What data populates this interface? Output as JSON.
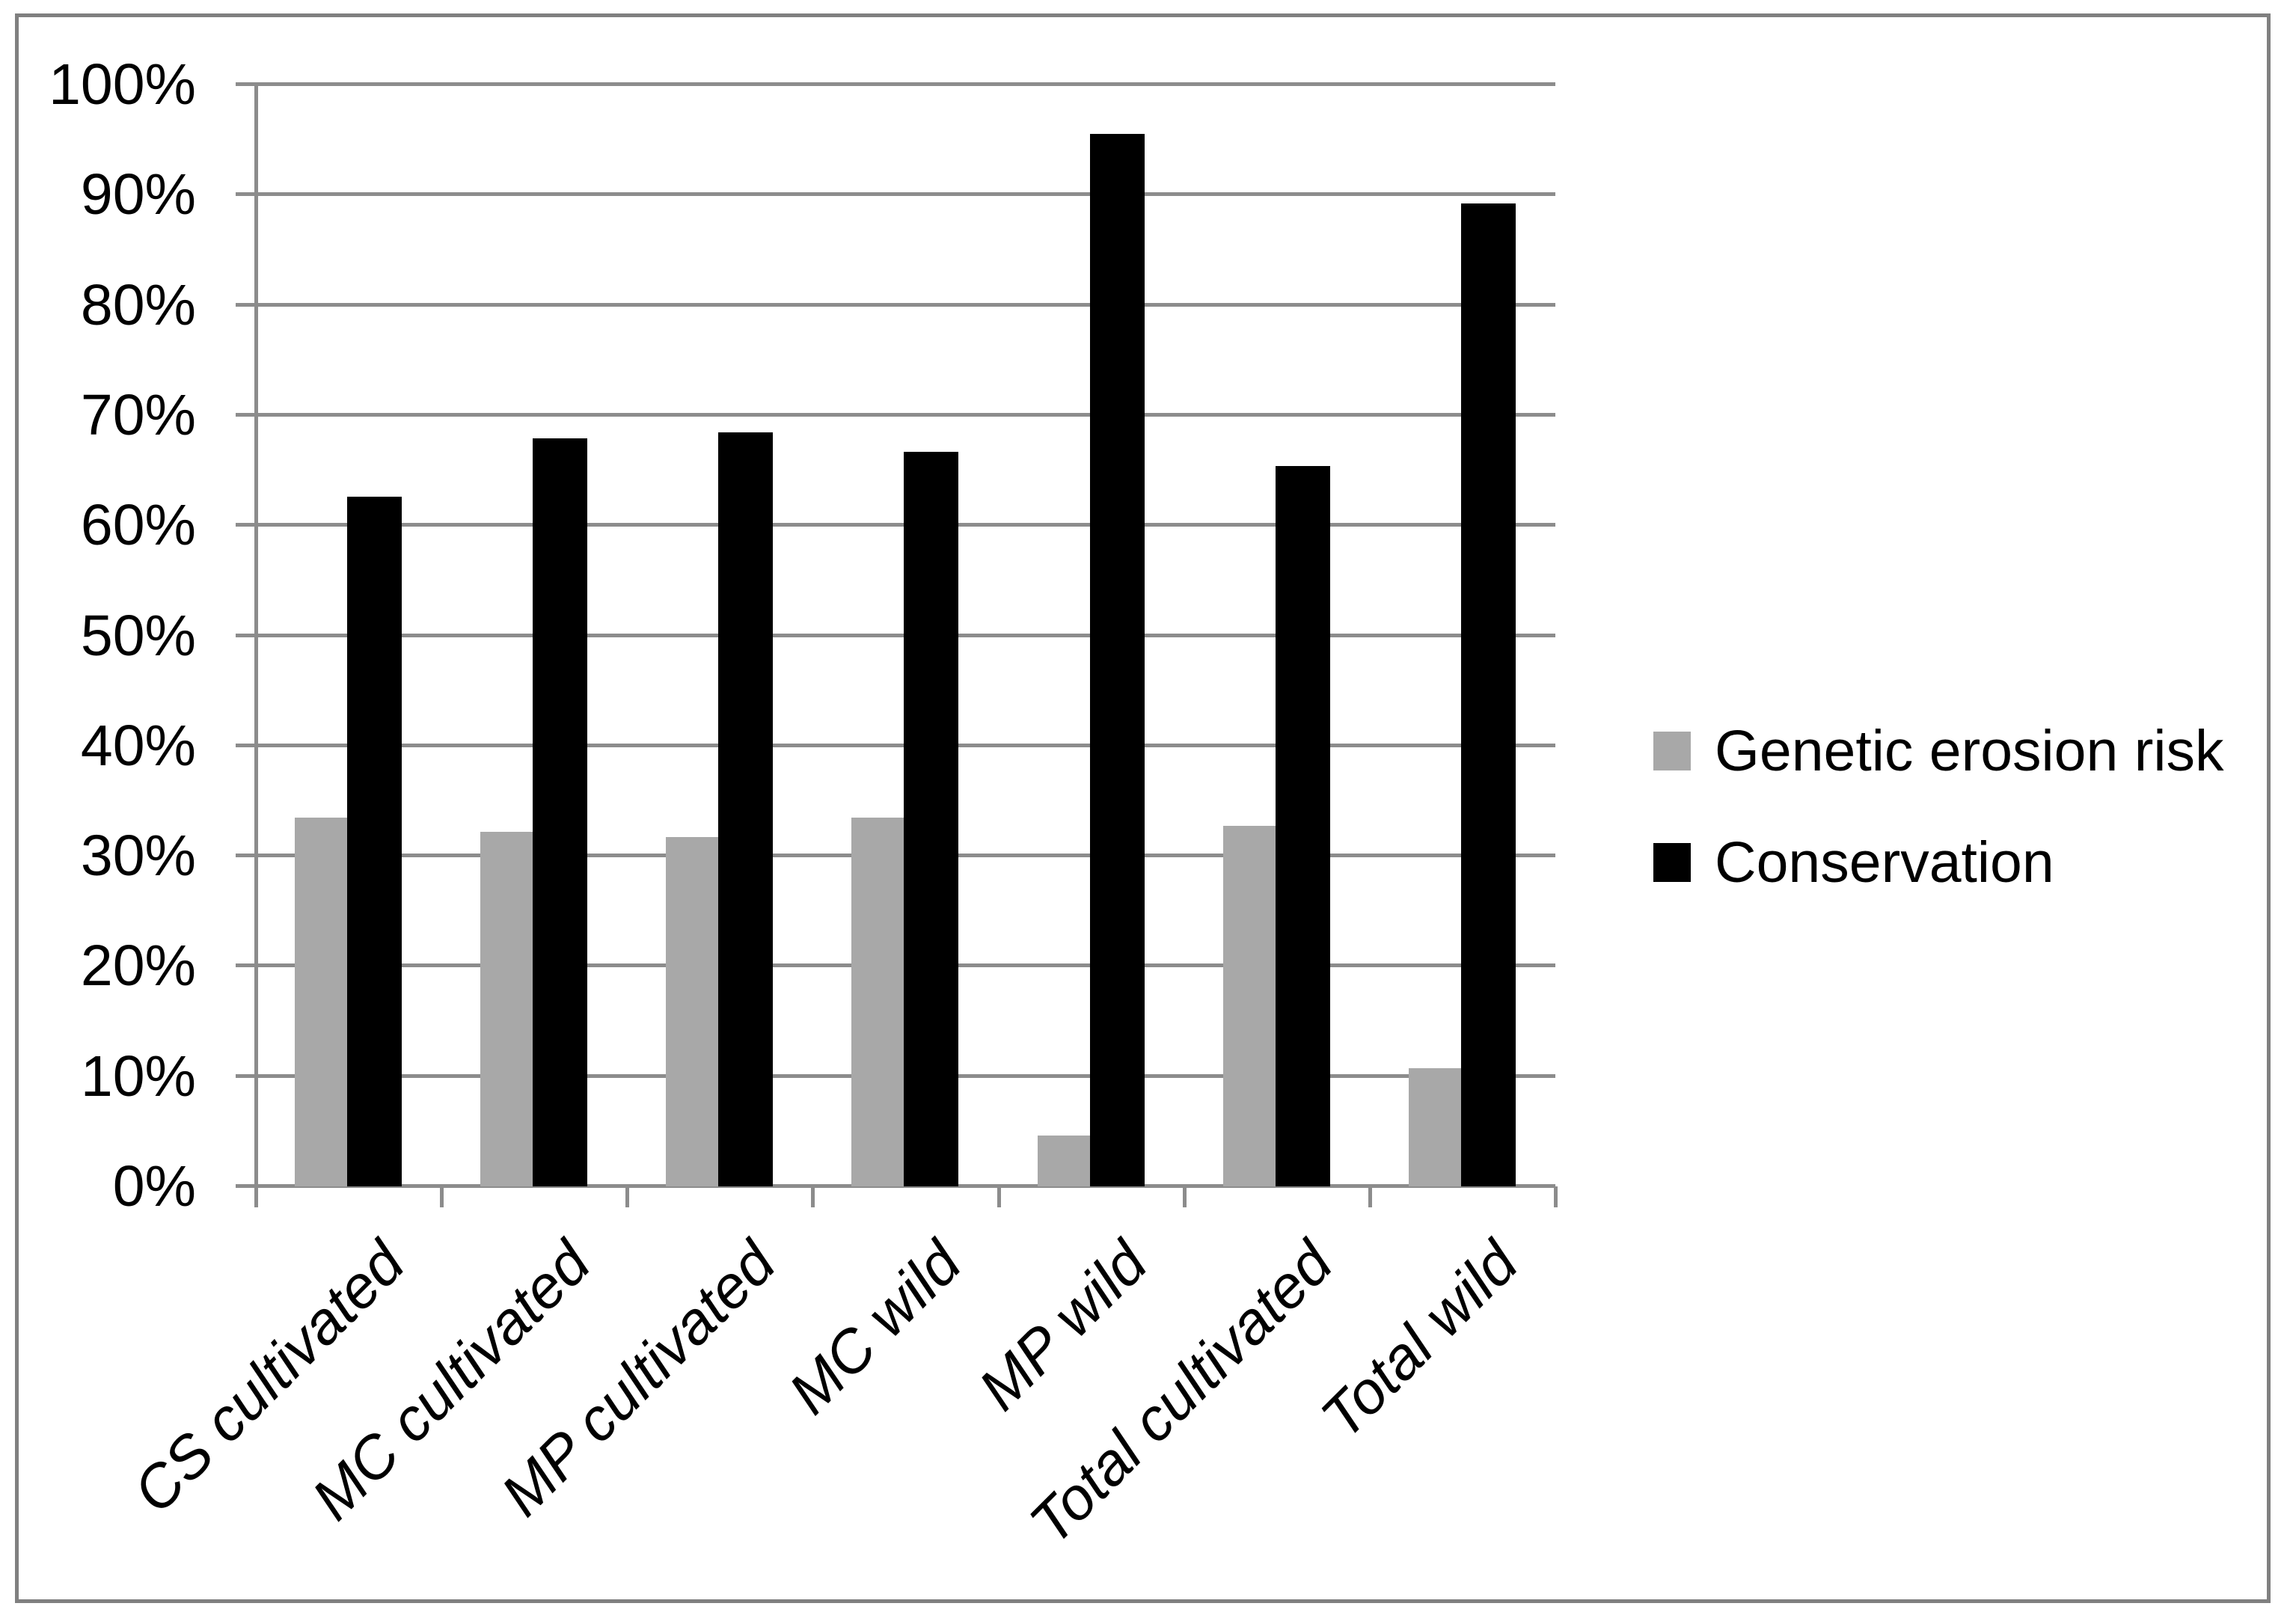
{
  "chart_data": {
    "type": "bar",
    "title": "",
    "categories": [
      "CS cultivated",
      "MC cultivated",
      "MP cultivated",
      "MC wild",
      "MP wild",
      "Total cultivated",
      "Total wild"
    ],
    "series": [
      {
        "name": "Genetic erosion risk",
        "color": "#a8a8a8",
        "values": [
          33.5,
          32.2,
          31.7,
          33.5,
          4.6,
          32.7,
          10.7
        ]
      },
      {
        "name": "Conservation",
        "color": "#000000",
        "values": [
          62.6,
          67.9,
          68.4,
          66.7,
          95.5,
          65.4,
          89.2
        ]
      }
    ],
    "y_axis": {
      "min": 0,
      "max": 100,
      "step": 10,
      "tick_labels": [
        "0%",
        "10%",
        "20%",
        "30%",
        "40%",
        "50%",
        "60%",
        "70%",
        "80%",
        "90%",
        "100%"
      ]
    },
    "x_axis": {
      "label_rotation_deg": -45,
      "label_style": "italic"
    },
    "grid": true,
    "legend_position": "right",
    "colors": {
      "gridline": "#8c8c8c",
      "axis": "#8c8c8c",
      "figure_border": "#808080",
      "background": "#ffffff",
      "series_gray": "#a8a8a8",
      "series_black": "#000000"
    }
  }
}
